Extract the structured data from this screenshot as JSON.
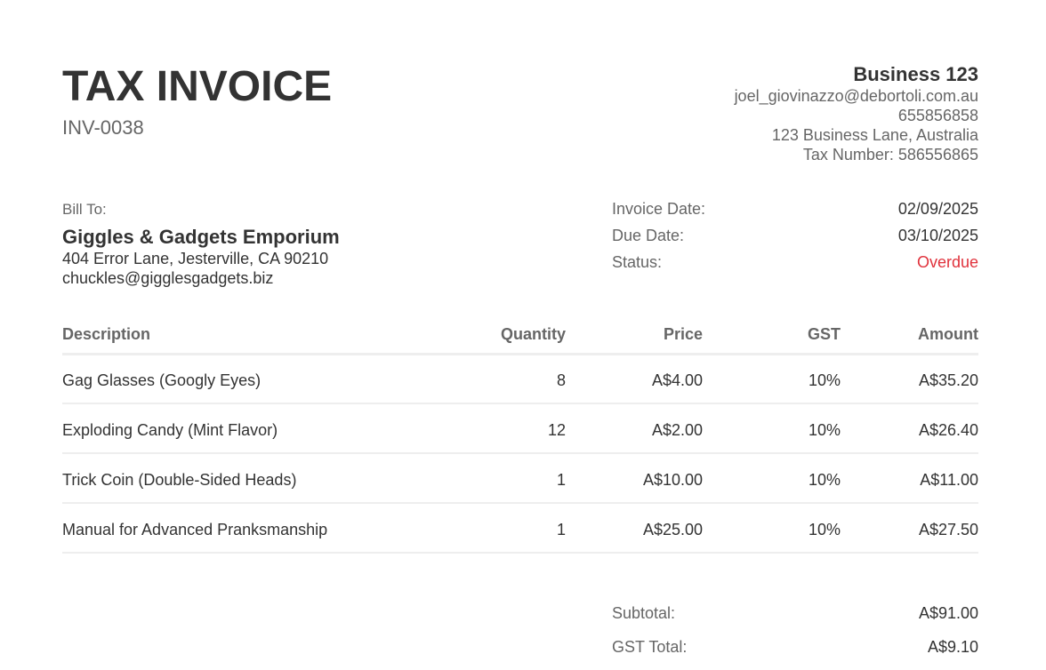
{
  "title": "TAX INVOICE",
  "invoice_number": "INV-0038",
  "business": {
    "name": "Business 123",
    "email": "joel_giovinazzo@debortoli.com.au",
    "phone": "655856858",
    "address": "123 Business Lane, Australia",
    "tax_number": "Tax Number: 586556865"
  },
  "bill_to": {
    "label": "Bill To:",
    "name": "Giggles & Gadgets Emporium",
    "address": "404 Error Lane, Jesterville, CA 90210",
    "email": "chuckles@gigglesgadgets.biz"
  },
  "meta": {
    "invoice_date_label": "Invoice Date:",
    "invoice_date": "02/09/2025",
    "due_date_label": "Due Date:",
    "due_date": "03/10/2025",
    "status_label": "Status:",
    "status": "Overdue",
    "status_color": "#e0323c"
  },
  "table": {
    "headers": [
      "Description",
      "Quantity",
      "Price",
      "GST",
      "Amount"
    ],
    "rows": [
      [
        "Gag Glasses (Googly Eyes)",
        "8",
        "A$4.00",
        "10%",
        "A$35.20"
      ],
      [
        "Exploding Candy (Mint Flavor)",
        "12",
        "A$2.00",
        "10%",
        "A$26.40"
      ],
      [
        "Trick Coin (Double-Sided Heads)",
        "1",
        "A$10.00",
        "10%",
        "A$11.00"
      ],
      [
        "Manual for Advanced Pranksmanship",
        "1",
        "A$25.00",
        "10%",
        "A$27.50"
      ]
    ]
  },
  "totals": {
    "subtotal_label": "Subtotal:",
    "subtotal": "A$91.00",
    "gst_label": "GST Total:",
    "gst": "A$9.10"
  }
}
